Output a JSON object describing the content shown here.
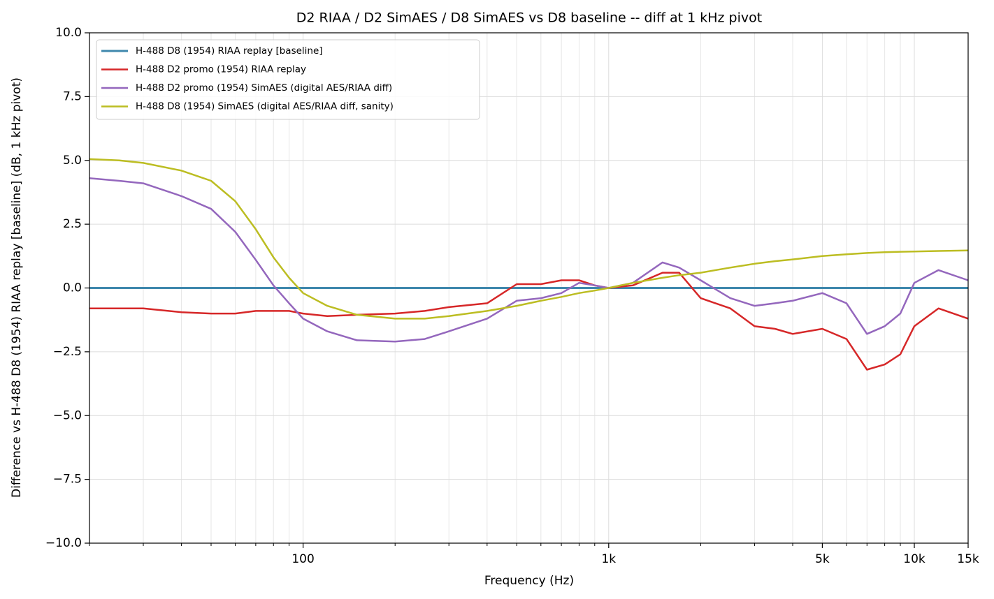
{
  "chart_data": {
    "type": "line",
    "title": "D2 RIAA / D2 SimAES / D8 SimAES vs D8 baseline -- diff at 1 kHz pivot",
    "x_label": "Frequency (Hz)",
    "y_label": "Difference vs H-488 D8 (1954) RIAA replay [baseline] (dB, 1 kHz pivot)",
    "x_scale": "log",
    "grid": true,
    "legend": "upper left",
    "xlim": [
      20,
      15000
    ],
    "ylim": [
      -10,
      10
    ],
    "xticks": [
      100,
      {
        "value": 1000,
        "label": "1k"
      },
      {
        "value": 5000,
        "label": "5k"
      },
      {
        "value": 10000,
        "label": "10k"
      },
      {
        "value": 15000,
        "label": "15k"
      }
    ],
    "xminorticks": [
      20,
      30,
      40,
      50,
      60,
      70,
      80,
      90,
      200,
      300,
      400,
      500,
      600,
      700,
      800,
      900,
      2000,
      3000,
      4000,
      6000,
      7000,
      8000,
      9000
    ],
    "yticks": [
      {
        "value": -10,
        "label": "−10.0"
      },
      {
        "value": -7.5,
        "label": "−7.5"
      },
      {
        "value": -5,
        "label": "−5.0"
      },
      {
        "value": -2.5,
        "label": "−2.5"
      },
      {
        "value": 0,
        "label": "0.0"
      },
      {
        "value": 2.5,
        "label": "2.5"
      },
      {
        "value": 5,
        "label": "5.0"
      },
      {
        "value": 7.5,
        "label": "7.5"
      },
      {
        "value": 10,
        "label": "10.0"
      }
    ],
    "x": [
      20,
      25,
      30,
      40,
      50,
      60,
      70,
      80,
      90,
      100,
      120,
      150,
      200,
      250,
      300,
      400,
      500,
      600,
      700,
      800,
      900,
      1000,
      1200,
      1500,
      1700,
      2000,
      2500,
      3000,
      3500,
      4000,
      5000,
      6000,
      7000,
      8000,
      9000,
      10000,
      12000,
      15000
    ],
    "series": [
      {
        "name": "H-488 D8 (1954) RIAA replay [baseline]",
        "color": "#3f88ad",
        "width": 3,
        "values": [
          0,
          0,
          0,
          0,
          0,
          0,
          0,
          0,
          0,
          0,
          0,
          0,
          0,
          0,
          0,
          0,
          0,
          0,
          0,
          0,
          0,
          0,
          0,
          0,
          0,
          0,
          0,
          0,
          0,
          0,
          0,
          0,
          0,
          0,
          0,
          0,
          0,
          0
        ]
      },
      {
        "name": "H-488 D2 promo (1954) RIAA replay",
        "color": "#d62728",
        "width": 2.5,
        "values": [
          -0.8,
          -0.8,
          -0.8,
          -0.95,
          -1.0,
          -1.0,
          -0.9,
          -0.9,
          -0.9,
          -1.0,
          -1.1,
          -1.05,
          -1.0,
          -0.9,
          -0.75,
          -0.6,
          0.15,
          0.15,
          0.3,
          0.3,
          0.1,
          0,
          0.1,
          0.6,
          0.6,
          -0.4,
          -0.8,
          -1.5,
          -1.6,
          -1.8,
          -1.6,
          -2.0,
          -3.2,
          -3.0,
          -2.6,
          -1.5,
          -0.8,
          -1.2
        ]
      },
      {
        "name": "H-488 D2 promo (1954) SimAES (digital AES/RIAA diff)",
        "color": "#9467bd",
        "width": 2.5,
        "values": [
          4.3,
          4.2,
          4.1,
          3.6,
          3.1,
          2.2,
          1.1,
          0.1,
          -0.6,
          -1.2,
          -1.7,
          -2.05,
          -2.1,
          -2.0,
          -1.7,
          -1.2,
          -0.5,
          -0.4,
          -0.2,
          0.2,
          0.1,
          0,
          0.2,
          1.0,
          0.8,
          0.3,
          -0.4,
          -0.7,
          -0.6,
          -0.5,
          -0.2,
          -0.6,
          -1.8,
          -1.5,
          -1.0,
          0.2,
          0.7,
          0.3
        ]
      },
      {
        "name": "H-488 D8 (1954) SimAES (digital AES/RIAA diff, sanity)",
        "color": "#bcbd22",
        "width": 2.5,
        "values": [
          5.05,
          5.0,
          4.9,
          4.6,
          4.2,
          3.4,
          2.3,
          1.2,
          0.4,
          -0.2,
          -0.7,
          -1.05,
          -1.2,
          -1.2,
          -1.1,
          -0.9,
          -0.7,
          -0.5,
          -0.35,
          -0.2,
          -0.1,
          0,
          0.2,
          0.4,
          0.5,
          0.6,
          0.8,
          0.95,
          1.05,
          1.12,
          1.25,
          1.32,
          1.37,
          1.4,
          1.42,
          1.43,
          1.45,
          1.47
        ]
      }
    ]
  }
}
